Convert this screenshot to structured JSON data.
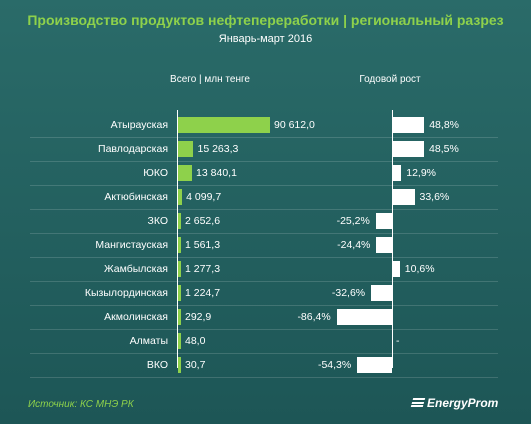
{
  "chart_data": {
    "type": "bar",
    "title": "Производство продуктов нефтепереработки | региональный разрез",
    "subtitle": "Январь-март 2016",
    "column_headers": {
      "total": "Всего | млн тенге",
      "growth": "Годовой рост"
    },
    "categories": [
      "Атырауская",
      "Павлодарская",
      "ЮКО",
      "Актюбинская",
      "ЗКО",
      "Мангистауская",
      "Жамбылская",
      "Кызылординская",
      "Акмолинская",
      "Алматы",
      "ВКО"
    ],
    "series": [
      {
        "key": "total",
        "values": [
          90612.0,
          15263.3,
          13840.1,
          4099.7,
          2652.6,
          1561.3,
          1277.3,
          1224.7,
          292.9,
          48.0,
          30.7
        ],
        "labels": [
          "90 612,0",
          "15 263,3",
          "13 840,1",
          "4 099,7",
          "2 652,6",
          "1 561,3",
          "1 277,3",
          "1 224,7",
          "292,9",
          "48,0",
          "30,7"
        ]
      },
      {
        "key": "growth",
        "values": [
          48.8,
          48.5,
          12.9,
          33.6,
          -25.2,
          -24.4,
          10.6,
          -32.6,
          -86.4,
          null,
          -54.3
        ],
        "labels": [
          "48,8%",
          "48,5%",
          "12,9%",
          "33,6%",
          "-25,2%",
          "-24,4%",
          "10,6%",
          "-32,6%",
          "-86,4%",
          "-",
          "-54,3%"
        ]
      }
    ],
    "colors": {
      "total_bar": "#8ed14b",
      "growth_bar": "#ffffff",
      "title": "#8ed14b"
    }
  },
  "footer": {
    "source": "Источник: КС МНЭ РК",
    "logo_text": "EnergyProm"
  }
}
